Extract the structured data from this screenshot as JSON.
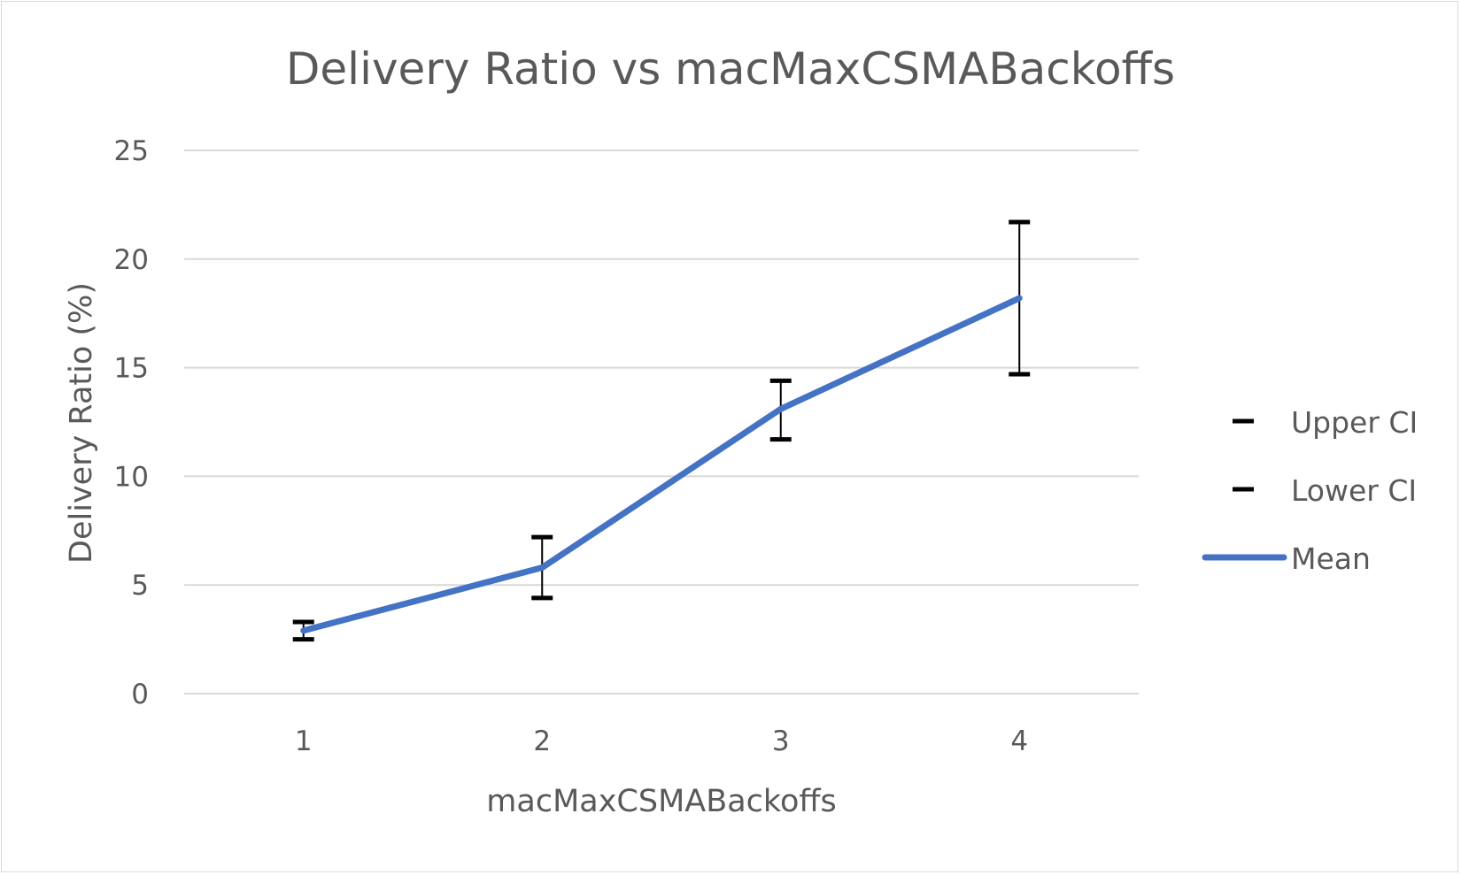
{
  "chart_data": {
    "type": "line",
    "title": "Delivery Ratio vs macMaxCSMABackoffs",
    "xlabel": "macMaxCSMABackoffs",
    "ylabel": "Delivery Ratio (%)",
    "categories": [
      "1",
      "2",
      "3",
      "4"
    ],
    "ylim": [
      0,
      25
    ],
    "yticks": [
      0,
      5,
      10,
      15,
      20,
      25
    ],
    "grid": true,
    "legend_position": "right",
    "series": [
      {
        "name": "Upper CI",
        "values": [
          3.3,
          7.2,
          14.4,
          21.7
        ],
        "color": "#000000"
      },
      {
        "name": "Lower CI",
        "values": [
          2.5,
          4.4,
          11.7,
          14.7
        ],
        "color": "#000000"
      },
      {
        "name": "Mean",
        "values": [
          2.9,
          5.8,
          13.1,
          18.2
        ],
        "color": "#4472c4"
      }
    ]
  }
}
